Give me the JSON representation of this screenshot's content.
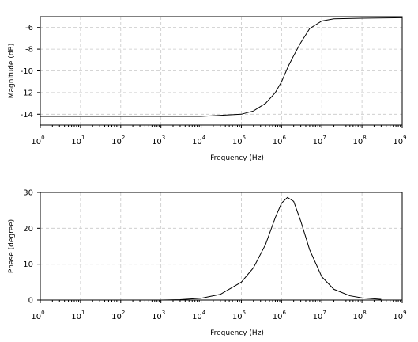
{
  "chart_data": [
    {
      "type": "line",
      "xscale": "log",
      "xlim": [
        1,
        1000000000
      ],
      "ylim": [
        -15,
        -5
      ],
      "grid": true,
      "xlabel": "Frequency (Hz)",
      "ylabel": "Magnitude (dB)",
      "xticks": [
        {
          "base": "10",
          "exp": "0"
        },
        {
          "base": "10",
          "exp": "1"
        },
        {
          "base": "10",
          "exp": "2"
        },
        {
          "base": "10",
          "exp": "3"
        },
        {
          "base": "10",
          "exp": "4"
        },
        {
          "base": "10",
          "exp": "5"
        },
        {
          "base": "10",
          "exp": "6"
        },
        {
          "base": "10",
          "exp": "7"
        },
        {
          "base": "10",
          "exp": "8"
        },
        {
          "base": "10",
          "exp": "9"
        }
      ],
      "yticks": [
        {
          "value": -14,
          "label": "-14"
        },
        {
          "value": -12,
          "label": "-12"
        },
        {
          "value": -10,
          "label": "-10"
        },
        {
          "value": -8,
          "label": "-8"
        },
        {
          "value": -6,
          "label": "-6"
        }
      ],
      "series": [
        {
          "x": [
            1,
            10,
            100,
            1000,
            10000,
            100000,
            200000,
            400000,
            700000,
            1000000,
            1500000,
            2000000,
            3000000,
            5000000,
            10000000,
            20000000,
            100000000,
            1000000000
          ],
          "y": [
            -14.2,
            -14.2,
            -14.2,
            -14.2,
            -14.2,
            -14.0,
            -13.7,
            -13.0,
            -12.0,
            -11.0,
            -9.5,
            -8.6,
            -7.4,
            -6.1,
            -5.4,
            -5.2,
            -5.15,
            -5.1
          ]
        }
      ]
    },
    {
      "type": "line",
      "xscale": "log",
      "xlim": [
        1,
        1000000000
      ],
      "ylim": [
        0,
        30
      ],
      "grid": true,
      "xlabel": "Frequency (Hz)",
      "ylabel": "Phase (degree)",
      "xticks": [
        {
          "base": "10",
          "exp": "0"
        },
        {
          "base": "10",
          "exp": "1"
        },
        {
          "base": "10",
          "exp": "2"
        },
        {
          "base": "10",
          "exp": "3"
        },
        {
          "base": "10",
          "exp": "4"
        },
        {
          "base": "10",
          "exp": "5"
        },
        {
          "base": "10",
          "exp": "6"
        },
        {
          "base": "10",
          "exp": "7"
        },
        {
          "base": "10",
          "exp": "8"
        },
        {
          "base": "10",
          "exp": "9"
        }
      ],
      "yticks": [
        {
          "value": 0,
          "label": "0"
        },
        {
          "value": 10,
          "label": "10"
        },
        {
          "value": 20,
          "label": "20"
        },
        {
          "value": 30,
          "label": "30"
        }
      ],
      "series": [
        {
          "x": [
            1,
            10,
            100,
            1000,
            3000,
            10000,
            30000,
            100000,
            200000,
            400000,
            700000,
            1000000,
            1400000,
            2000000,
            3000000,
            5000000,
            10000000,
            20000000,
            50000000,
            100000000,
            300000000
          ],
          "y": [
            0,
            0,
            0,
            0,
            0.1,
            0.5,
            1.6,
            5.0,
            9.0,
            15.5,
            23.0,
            27.0,
            28.6,
            27.5,
            22.0,
            14.0,
            6.5,
            3.0,
            1.2,
            0.6,
            0.2
          ]
        }
      ]
    }
  ]
}
